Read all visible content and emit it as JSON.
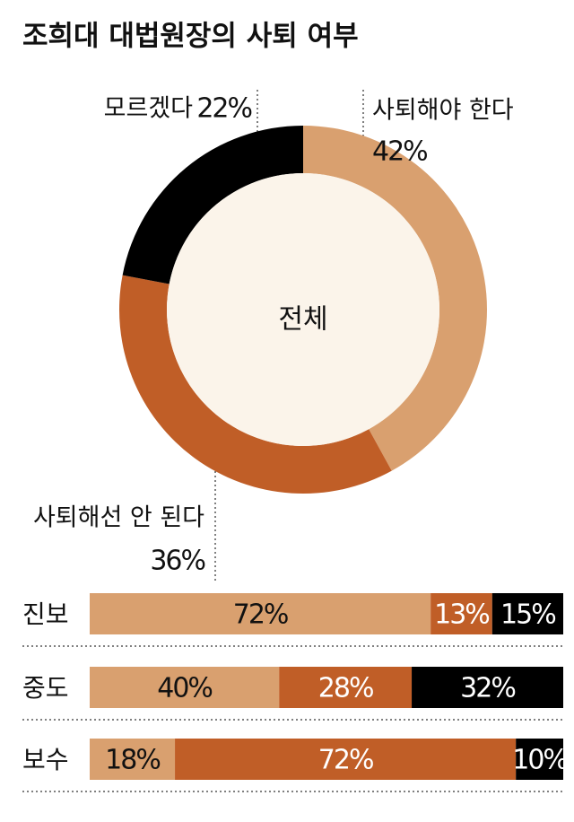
{
  "chart_data": [
    {
      "type": "donut",
      "title": "조희대 대법원장의 사퇴 여부",
      "center_label": "전체",
      "categories": [
        "사퇴해야 한다",
        "사퇴해선 안 된다",
        "모르겠다"
      ],
      "values": [
        42,
        36,
        22
      ],
      "value_labels": [
        "42%",
        "36%",
        "22%"
      ],
      "colors": [
        "#d9a06f",
        "#c05e27",
        "#000000"
      ]
    },
    {
      "type": "stacked_bar",
      "categories": [
        "진보",
        "중도",
        "보수"
      ],
      "series": [
        {
          "color": "#d9a06f",
          "values": [
            72,
            40,
            18
          ],
          "value_labels": [
            "72%",
            "40%",
            "18%"
          ]
        },
        {
          "color": "#c05e27",
          "values": [
            13,
            28,
            72
          ],
          "value_labels": [
            "13%",
            "28%",
            "72%"
          ]
        },
        {
          "color": "#000000",
          "values": [
            15,
            32,
            10
          ],
          "value_labels": [
            "15%",
            "32%",
            "10%"
          ]
        }
      ]
    }
  ]
}
